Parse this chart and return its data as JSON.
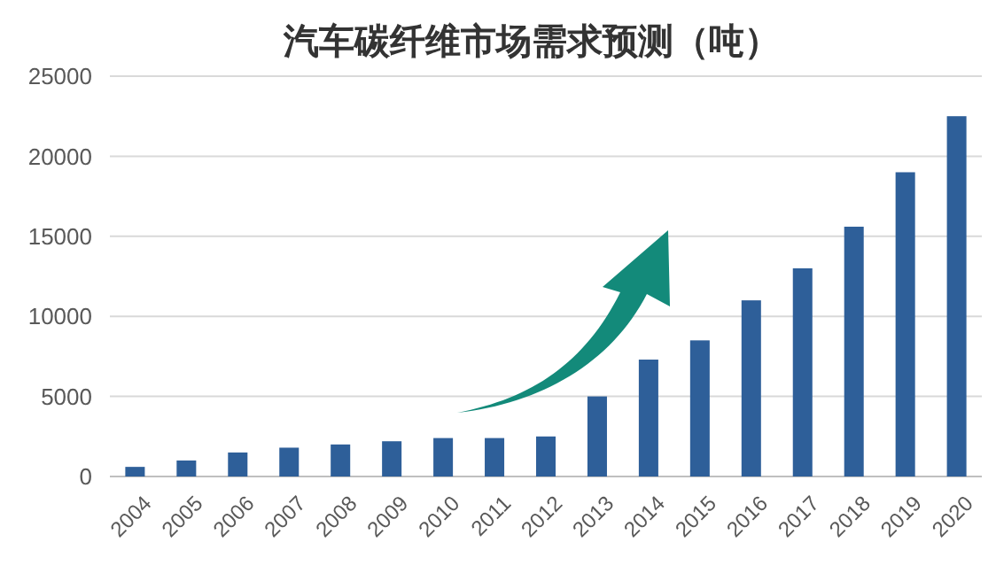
{
  "chart_data": {
    "type": "bar",
    "title": "汽车碳纤维市场需求预测（吨）",
    "categories": [
      "2004",
      "2005",
      "2006",
      "2007",
      "2008",
      "2009",
      "2010",
      "2011",
      "2012",
      "2013",
      "2014",
      "2015",
      "2016",
      "2017",
      "2018",
      "2019",
      "2020"
    ],
    "series": [
      {
        "color": "#2e5f99",
        "values": [
          600,
          1000,
          1500,
          1800,
          2000,
          2200,
          2400,
          2400,
          2500,
          5000,
          7300,
          8500,
          11000,
          13000,
          15600,
          19000,
          22500
        ]
      }
    ],
    "ylim": [
      0,
      25000
    ],
    "yticks": [
      0,
      5000,
      10000,
      15000,
      20000,
      25000
    ],
    "grid": "y"
  }
}
